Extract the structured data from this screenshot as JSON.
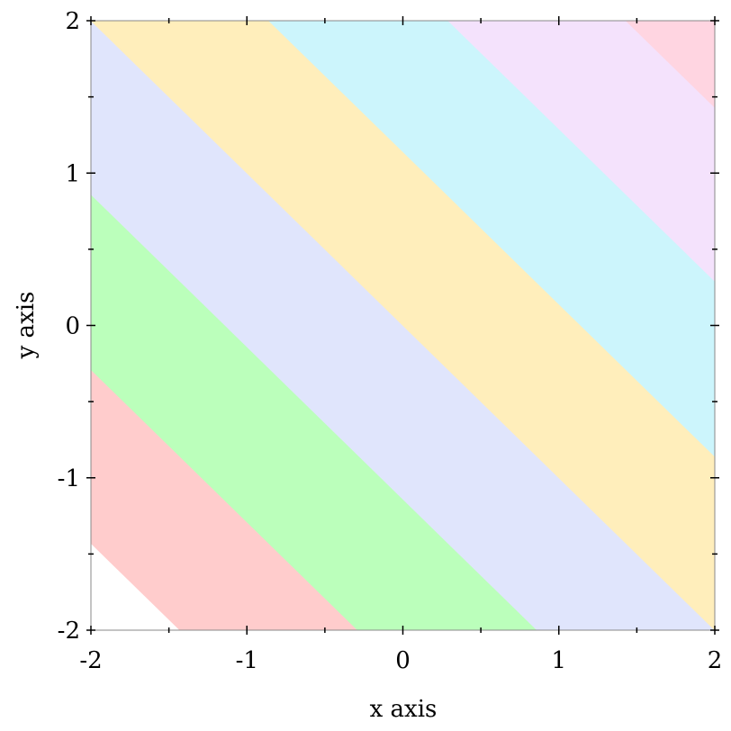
{
  "chart_data": {
    "type": "contour",
    "title": "",
    "xlabel": "x axis",
    "ylabel": "y axis",
    "xlim": [
      -2,
      2
    ],
    "ylim": [
      -2,
      2
    ],
    "x_ticks": [
      "-2",
      "-1",
      "0",
      "1",
      "2"
    ],
    "y_ticks": [
      "-2",
      "-1",
      "0",
      "1",
      "2"
    ],
    "x_tick_values": [
      -2,
      -1,
      0,
      1,
      2
    ],
    "y_tick_values": [
      -2,
      -1,
      0,
      1,
      2
    ],
    "minor_tick_values": [
      -1.5,
      -0.5,
      0.5,
      1.5
    ],
    "grid": false,
    "contour_variable": "x + y",
    "bands": [
      {
        "range": [
          -4,
          -3.43
        ],
        "color": "#FFFFFF"
      },
      {
        "range": [
          -3.43,
          -2.29
        ],
        "color": "#FFCCCC"
      },
      {
        "range": [
          -2.29,
          -1.14
        ],
        "color": "#BBFFBB"
      },
      {
        "range": [
          -1.14,
          0
        ],
        "color": "#E0E5FC"
      },
      {
        "range": [
          0,
          1.14
        ],
        "color": "#FFEEBB"
      },
      {
        "range": [
          1.14,
          2.29
        ],
        "color": "#CCF5FC"
      },
      {
        "range": [
          2.29,
          3.43
        ],
        "color": "#F4E2FC"
      },
      {
        "range": [
          3.43,
          4
        ],
        "color": "#FFD5E1"
      }
    ]
  }
}
